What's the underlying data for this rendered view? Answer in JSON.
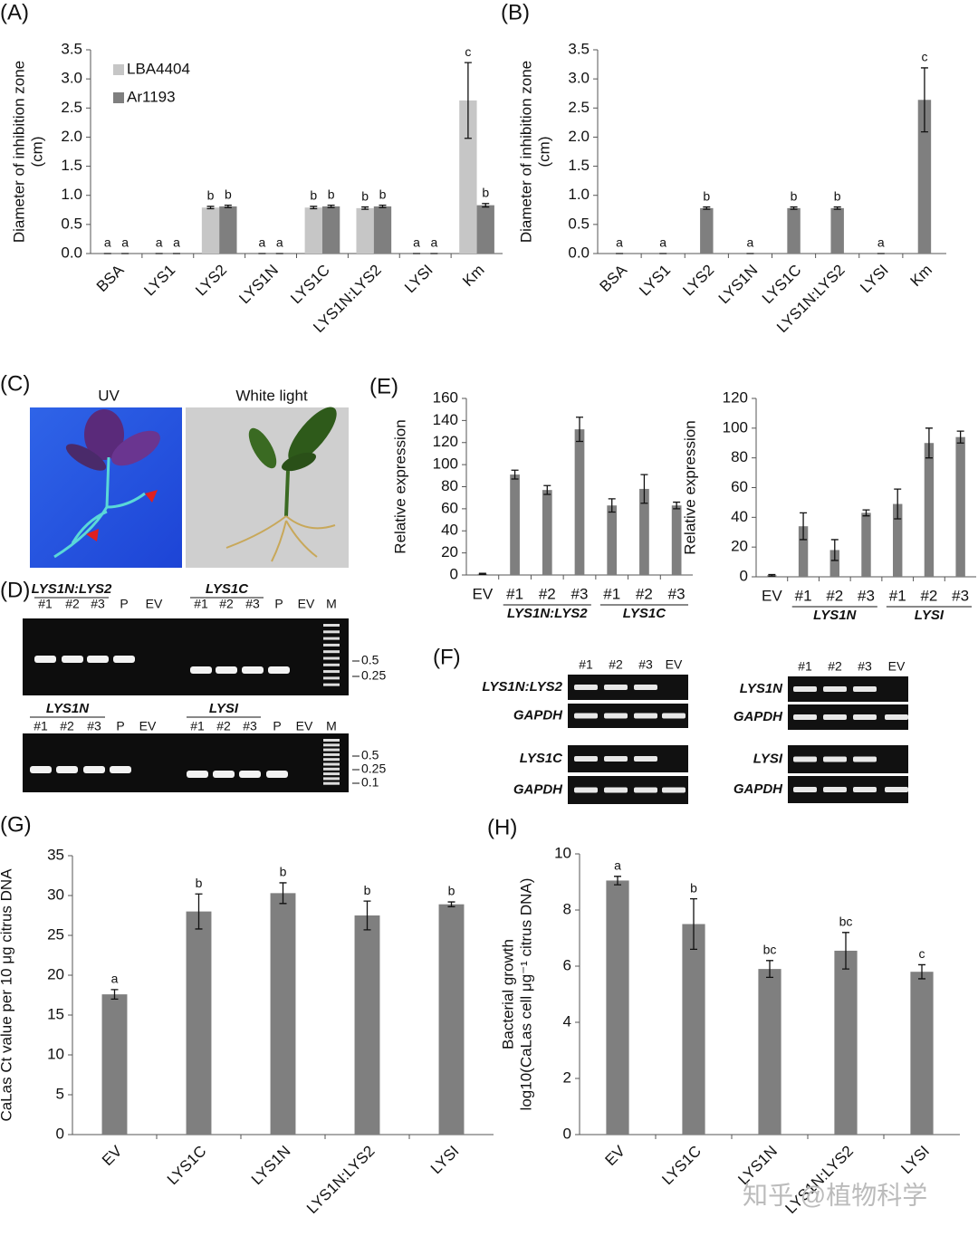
{
  "chart_data": [
    {
      "type": "bar",
      "panel": "(A)",
      "ylabel": [
        "Diameter of inhibition zone",
        "(cm)"
      ],
      "categories": [
        "BSA",
        "LYS1",
        "LYS2",
        "LYS1N",
        "LYS1C",
        "LYS1N:LYS2",
        "LYSI",
        "Km"
      ],
      "series": [
        {
          "name": "LBA4404",
          "color": "#c6c6c6",
          "values": [
            0,
            0,
            0.79,
            0,
            0.79,
            0.78,
            0,
            2.63
          ],
          "errors": [
            0,
            0,
            0.02,
            0,
            0.02,
            0.02,
            0,
            0.65
          ],
          "letters": [
            "a",
            "a",
            "b",
            "a",
            "b",
            "b",
            "a",
            "c"
          ]
        },
        {
          "name": "Ar1193",
          "color": "#7f7f7f",
          "values": [
            0,
            0,
            0.81,
            0,
            0.81,
            0.81,
            0,
            0.83
          ],
          "errors": [
            0,
            0,
            0.02,
            0,
            0.02,
            0.02,
            0,
            0.03
          ],
          "letters": [
            "a",
            "a",
            "b",
            "a",
            "b",
            "b",
            "a",
            "b"
          ]
        }
      ],
      "legend": "upper left",
      "ylim": [
        0,
        3.5
      ],
      "yticks": [
        {
          "value": 0,
          "label": "0.0"
        },
        0.5,
        {
          "value": 1,
          "label": "1.0"
        },
        1.5,
        {
          "value": 2,
          "label": "2.0"
        },
        2.5,
        {
          "value": 3,
          "label": "3.0"
        },
        3.5
      ]
    },
    {
      "type": "bar",
      "panel": "(B)",
      "ylabel": [
        "Diameter of inhibition zone",
        "(cm)"
      ],
      "categories": [
        "BSA",
        "LYS1",
        "LYS2",
        "LYS1N",
        "LYS1C",
        "LYS1N:LYS2",
        "LYSI",
        "Km"
      ],
      "series": [
        {
          "color": "#7f7f7f",
          "values": [
            0,
            0,
            0.78,
            0,
            0.78,
            0.78,
            0,
            2.64
          ],
          "errors": [
            0,
            0,
            0.02,
            0,
            0.02,
            0.02,
            0,
            0.55
          ],
          "letters": [
            "a",
            "a",
            "b",
            "a",
            "b",
            "b",
            "a",
            "c"
          ]
        }
      ],
      "ylim": [
        0,
        3.5
      ],
      "yticks": [
        {
          "value": 0,
          "label": "0.0"
        },
        0.5,
        {
          "value": 1,
          "label": "1.0"
        },
        1.5,
        {
          "value": 2,
          "label": "2.0"
        },
        2.5,
        {
          "value": 3,
          "label": "3.0"
        },
        3.5
      ]
    },
    {
      "type": "bar",
      "panel": "(E)",
      "ylabel": [
        "Relative expression"
      ],
      "categories": [
        "EV",
        "#1",
        "#2",
        "#3",
        "#1",
        "#2",
        "#3"
      ],
      "group_labels": [
        "LYS1N:LYS2",
        "LYS1C"
      ],
      "series": [
        {
          "color": "#7f7f7f",
          "values": [
            1,
            91,
            77,
            132,
            63,
            78,
            63
          ],
          "errors": [
            0.5,
            4,
            4,
            11,
            6,
            13,
            3
          ]
        }
      ],
      "ylim": [
        0,
        160
      ],
      "yticks": [
        0,
        20,
        40,
        60,
        80,
        100,
        120,
        140,
        160
      ]
    },
    {
      "type": "bar",
      "ylabel": [
        "Relative expression"
      ],
      "categories": [
        "EV",
        "#1",
        "#2",
        "#3",
        "#1",
        "#2",
        "#3"
      ],
      "group_labels": [
        "LYS1N",
        "LYSI"
      ],
      "series": [
        {
          "color": "#7f7f7f",
          "values": [
            1,
            34,
            18,
            43,
            49,
            90,
            94
          ],
          "errors": [
            0.5,
            9,
            7,
            2,
            10,
            10,
            4
          ]
        }
      ],
      "ylim": [
        0,
        120
      ],
      "yticks": [
        0,
        20,
        40,
        60,
        80,
        100,
        120
      ]
    },
    {
      "type": "bar",
      "panel": "(G)",
      "ylabel": [
        "CaLas Ct value per 10 μg citrus DNA"
      ],
      "categories": [
        "EV",
        "LYS1C",
        "LYS1N",
        "LYS1N:LYS2",
        "LYSI"
      ],
      "series": [
        {
          "color": "#7f7f7f",
          "values": [
            17.6,
            28,
            30.3,
            27.5,
            28.9
          ],
          "errors": [
            0.6,
            2.2,
            1.3,
            1.8,
            0.3
          ],
          "letters": [
            "a",
            "b",
            "b",
            "b",
            "b"
          ]
        }
      ],
      "ylim": [
        0,
        35
      ],
      "yticks": [
        0,
        5,
        10,
        15,
        20,
        25,
        30,
        35
      ]
    },
    {
      "type": "bar",
      "panel": "(H)",
      "ylabel": [
        "Bacterial growth",
        "log10(CaLas cell μg⁻¹ citrus DNA)"
      ],
      "categories": [
        "EV",
        "LYS1C",
        "LYS1N",
        "LYS1N:LYS2",
        "LYSI"
      ],
      "series": [
        {
          "color": "#7f7f7f",
          "values": [
            9.05,
            7.5,
            5.9,
            6.55,
            5.8
          ],
          "errors": [
            0.15,
            0.9,
            0.3,
            0.65,
            0.25
          ],
          "letters": [
            "a",
            "b",
            "bc",
            "bc",
            "c"
          ]
        }
      ],
      "ylim": [
        0,
        10
      ],
      "yticks": [
        0,
        2,
        4,
        6,
        8,
        10
      ]
    }
  ],
  "photos": {
    "label": "(C)",
    "captions": [
      "UV",
      "White light"
    ]
  },
  "gel_d": {
    "label": "(D)",
    "rows": [
      {
        "groups": [
          {
            "name": "LYS1N:LYS2",
            "lanes": [
              "#1",
              "#2",
              "#3",
              "P",
              "EV"
            ]
          },
          {
            "name": "LYS1C",
            "lanes": [
              "#1",
              "#2",
              "#3",
              "P",
              "EV",
              "M"
            ]
          }
        ],
        "markers": [
          "0.5",
          "0.25"
        ]
      },
      {
        "groups": [
          {
            "name": "LYS1N",
            "lanes": [
              "#1",
              "#2",
              "#3",
              "P",
              "EV"
            ]
          },
          {
            "name": "LYSI",
            "lanes": [
              "#1",
              "#2",
              "#3",
              "P",
              "EV",
              "M"
            ]
          }
        ],
        "markers": [
          "0.5",
          "0.25",
          "0.1"
        ]
      }
    ]
  },
  "gel_f": {
    "label": "(F)",
    "panels": [
      {
        "lanes": [
          "#1",
          "#2",
          "#3",
          "EV"
        ],
        "rows": [
          "LYS1N:LYS2",
          "GAPDH",
          "LYS1C",
          "GAPDH"
        ]
      },
      {
        "lanes": [
          "#1",
          "#2",
          "#3",
          "EV"
        ],
        "rows": [
          "LYS1N",
          "GAPDH",
          "LYSI",
          "GAPDH"
        ]
      }
    ]
  },
  "watermark": "知乎 @植物科学"
}
